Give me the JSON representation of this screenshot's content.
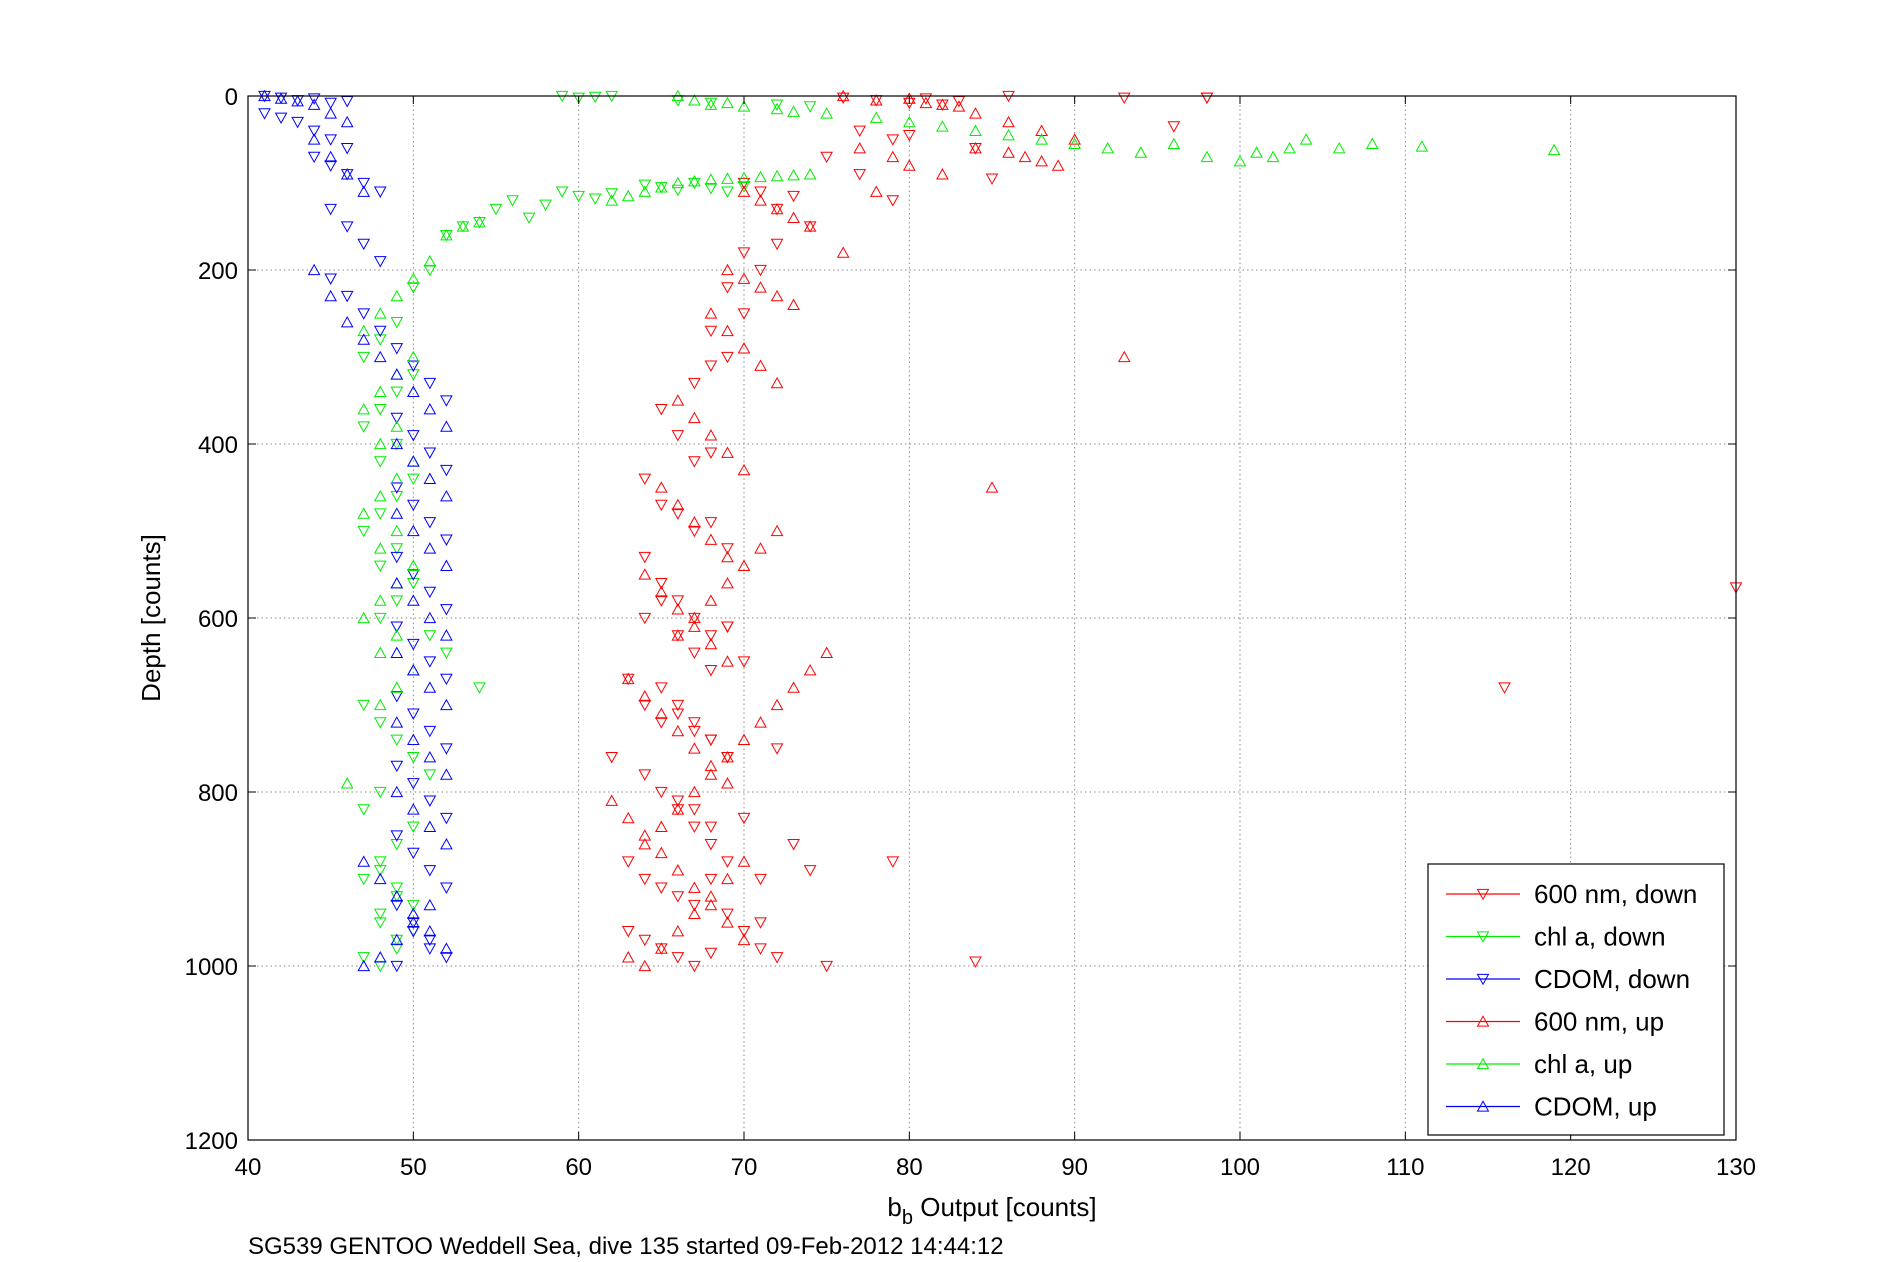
{
  "chart_data": {
    "type": "scatter",
    "title": "",
    "xlabel_main": "b",
    "xlabel_sub": "b",
    "xlabel_rest": " Output [counts]",
    "ylabel": "Depth [counts]",
    "caption": "SG539 GENTOO Weddell Sea, dive 135 started 09-Feb-2012 14:44:12",
    "xlim": [
      40,
      130
    ],
    "ylim": [
      0,
      1200
    ],
    "y_reversed": true,
    "xticks": [
      "40",
      "50",
      "60",
      "70",
      "80",
      "90",
      "100",
      "110",
      "120",
      "130"
    ],
    "yticks": [
      "0",
      "200",
      "400",
      "600",
      "800",
      "1000",
      "1200"
    ],
    "grid": true,
    "legend_placement": "bottom-right",
    "series": [
      {
        "name": "600 nm, down",
        "color": "#ff0000",
        "marker": "triangle-down",
        "x": [
          76,
          78,
          80,
          81,
          82,
          83,
          86,
          93,
          98,
          77,
          79,
          80,
          84,
          75,
          77,
          79,
          70,
          71,
          72,
          73,
          74,
          70,
          71,
          72,
          69,
          70,
          68,
          69,
          67,
          68,
          65,
          66,
          67,
          68,
          64,
          65,
          66,
          67,
          68,
          69,
          64,
          65,
          66,
          67,
          68,
          69,
          70,
          63,
          64,
          65,
          66,
          67,
          68,
          69,
          72,
          64,
          65,
          66,
          67,
          68,
          70,
          73,
          63,
          64,
          65,
          66,
          67,
          68,
          69,
          71,
          63,
          64,
          65,
          66,
          67,
          68,
          62,
          64,
          65,
          66,
          67,
          68,
          69,
          65,
          66,
          67,
          68,
          69,
          79,
          66,
          67,
          68,
          69,
          71,
          74,
          70,
          71,
          72,
          75,
          84,
          96,
          130,
          116,
          98,
          85
        ],
        "y": [
          2,
          5,
          8,
          3,
          10,
          6,
          0,
          2,
          2,
          40,
          50,
          45,
          60,
          70,
          90,
          120,
          100,
          110,
          130,
          115,
          150,
          180,
          200,
          170,
          220,
          250,
          270,
          300,
          330,
          310,
          360,
          390,
          420,
          410,
          440,
          470,
          480,
          500,
          490,
          520,
          530,
          560,
          580,
          600,
          620,
          610,
          650,
          670,
          700,
          720,
          710,
          730,
          740,
          760,
          750,
          780,
          800,
          810,
          820,
          840,
          830,
          860,
          880,
          900,
          910,
          920,
          930,
          900,
          940,
          950,
          960,
          970,
          980,
          990,
          1000,
          985,
          760,
          600,
          580,
          620,
          640,
          660,
          610,
          680,
          700,
          720,
          740,
          760,
          880,
          820,
          840,
          860,
          880,
          900,
          890,
          960,
          980,
          990,
          1000,
          995,
          35,
          565,
          680,
          2,
          95
        ]
      },
      {
        "name": "chl a, down",
        "color": "#00ee00",
        "marker": "triangle-down",
        "x": [
          59,
          60,
          61,
          62,
          66,
          68,
          72,
          74,
          55,
          56,
          57,
          58,
          59,
          60,
          61,
          62,
          64,
          65,
          66,
          67,
          68,
          69,
          70,
          52,
          53,
          54,
          51,
          50,
          49,
          48,
          47,
          50,
          49,
          48,
          47,
          49,
          48,
          50,
          49,
          48,
          47,
          49,
          48,
          50,
          49,
          48,
          51,
          52,
          54,
          47,
          48,
          49,
          50,
          51,
          48,
          47,
          50,
          49,
          48,
          47,
          49,
          48,
          50,
          49,
          48,
          47,
          49,
          48,
          50,
          49,
          48
        ],
        "y": [
          0,
          2,
          1,
          0,
          5,
          8,
          10,
          12,
          130,
          120,
          140,
          125,
          110,
          115,
          118,
          112,
          102,
          105,
          108,
          100,
          106,
          110,
          104,
          160,
          150,
          145,
          200,
          220,
          260,
          280,
          300,
          320,
          340,
          360,
          380,
          400,
          420,
          440,
          460,
          480,
          500,
          520,
          540,
          560,
          580,
          600,
          620,
          640,
          680,
          700,
          720,
          740,
          760,
          780,
          800,
          820,
          840,
          860,
          880,
          900,
          920,
          940,
          960,
          980,
          1000,
          990,
          970,
          950,
          930,
          910,
          890
        ]
      },
      {
        "name": "CDOM, down",
        "color": "#0000ff",
        "marker": "triangle-down",
        "x": [
          41,
          42,
          43,
          44,
          45,
          46,
          41,
          42,
          43,
          44,
          45,
          46,
          44,
          45,
          46,
          47,
          48,
          45,
          46,
          47,
          48,
          45,
          46,
          47,
          48,
          49,
          50,
          51,
          52,
          49,
          50,
          51,
          52,
          49,
          50,
          51,
          52,
          49,
          50,
          51,
          52,
          49,
          50,
          51,
          52,
          49,
          50,
          51,
          52,
          49,
          50,
          51,
          52,
          49,
          50,
          51,
          52,
          49,
          50,
          51,
          52,
          49,
          50,
          51
        ],
        "y": [
          0,
          2,
          5,
          3,
          8,
          6,
          20,
          25,
          30,
          40,
          50,
          60,
          70,
          80,
          90,
          100,
          110,
          130,
          150,
          170,
          190,
          210,
          230,
          250,
          270,
          290,
          310,
          330,
          350,
          370,
          390,
          410,
          430,
          450,
          470,
          490,
          510,
          530,
          550,
          570,
          590,
          610,
          630,
          650,
          670,
          690,
          710,
          730,
          750,
          770,
          790,
          810,
          830,
          850,
          870,
          890,
          910,
          930,
          950,
          970,
          990,
          1000,
          960,
          980
        ]
      },
      {
        "name": "600 nm, up",
        "color": "#ff0000",
        "marker": "triangle-up",
        "x": [
          76,
          78,
          80,
          81,
          82,
          83,
          84,
          86,
          88,
          90,
          77,
          79,
          80,
          82,
          84,
          86,
          87,
          88,
          89,
          70,
          71,
          72,
          73,
          74,
          76,
          78,
          69,
          70,
          71,
          72,
          73,
          68,
          69,
          70,
          71,
          72,
          66,
          67,
          68,
          69,
          70,
          65,
          66,
          67,
          68,
          69,
          64,
          65,
          66,
          67,
          68,
          69,
          63,
          64,
          65,
          66,
          67,
          68,
          69,
          62,
          63,
          64,
          65,
          66,
          67,
          68,
          69,
          70,
          63,
          64,
          65,
          66,
          67,
          68,
          69,
          70,
          64,
          65,
          66,
          67,
          68,
          69,
          70,
          71,
          72,
          73,
          74,
          75,
          66,
          67,
          68,
          69,
          70,
          71,
          72,
          93,
          85
        ],
        "y": [
          0,
          5,
          3,
          8,
          10,
          12,
          20,
          30,
          40,
          50,
          60,
          70,
          80,
          90,
          60,
          65,
          70,
          75,
          80,
          110,
          120,
          130,
          140,
          150,
          180,
          110,
          200,
          210,
          220,
          230,
          240,
          250,
          270,
          290,
          310,
          330,
          350,
          370,
          390,
          410,
          430,
          450,
          470,
          490,
          510,
          530,
          550,
          570,
          590,
          610,
          630,
          650,
          670,
          690,
          710,
          730,
          750,
          770,
          790,
          810,
          830,
          850,
          870,
          890,
          910,
          930,
          950,
          970,
          990,
          1000,
          980,
          960,
          940,
          920,
          900,
          880,
          860,
          840,
          820,
          800,
          780,
          760,
          740,
          720,
          700,
          680,
          660,
          640,
          620,
          600,
          580,
          560,
          540,
          520,
          500,
          300,
          450
        ]
      },
      {
        "name": "chl a, up",
        "color": "#00ee00",
        "marker": "triangle-up",
        "x": [
          66,
          67,
          68,
          69,
          70,
          72,
          73,
          75,
          78,
          80,
          82,
          84,
          86,
          88,
          90,
          92,
          94,
          96,
          98,
          100,
          101,
          102,
          103,
          104,
          106,
          108,
          111,
          119,
          62,
          63,
          64,
          65,
          66,
          67,
          68,
          69,
          70,
          71,
          72,
          73,
          74,
          52,
          53,
          54,
          51,
          50,
          49,
          48,
          47,
          46,
          50,
          49,
          48,
          47,
          49,
          48,
          50,
          49,
          48,
          47,
          49,
          48,
          50,
          49,
          48,
          47,
          49,
          48,
          50,
          49,
          48
        ],
        "y": [
          0,
          5,
          10,
          8,
          12,
          15,
          18,
          20,
          25,
          30,
          35,
          40,
          45,
          50,
          55,
          60,
          65,
          55,
          70,
          75,
          65,
          70,
          60,
          50,
          60,
          55,
          58,
          62,
          120,
          115,
          110,
          105,
          100,
          98,
          96,
          95,
          94,
          93,
          92,
          91,
          90,
          160,
          150,
          145,
          190,
          210,
          230,
          250,
          270,
          790,
          300,
          320,
          340,
          360,
          380,
          400,
          420,
          440,
          460,
          480,
          500,
          520,
          540,
          560,
          580,
          600,
          620,
          640,
          660,
          680,
          700
        ]
      },
      {
        "name": "CDOM, up",
        "color": "#0000ff",
        "marker": "triangle-up",
        "x": [
          41,
          42,
          43,
          44,
          45,
          46,
          44,
          45,
          46,
          47,
          44,
          45,
          46,
          47,
          48,
          49,
          50,
          51,
          52,
          49,
          50,
          51,
          52,
          49,
          50,
          51,
          52,
          49,
          50,
          51,
          52,
          49,
          50,
          51,
          52,
          49,
          50,
          51,
          52,
          49,
          50,
          51,
          52,
          47,
          48,
          49,
          50,
          51,
          52,
          47,
          48,
          49,
          50,
          51
        ],
        "y": [
          0,
          3,
          6,
          10,
          20,
          30,
          50,
          70,
          90,
          110,
          200,
          230,
          260,
          280,
          300,
          320,
          340,
          360,
          380,
          400,
          420,
          440,
          460,
          480,
          500,
          520,
          540,
          560,
          580,
          600,
          620,
          640,
          660,
          680,
          700,
          720,
          740,
          760,
          780,
          800,
          820,
          840,
          860,
          880,
          900,
          920,
          940,
          960,
          980,
          1000,
          990,
          970,
          950,
          930
        ]
      }
    ]
  }
}
